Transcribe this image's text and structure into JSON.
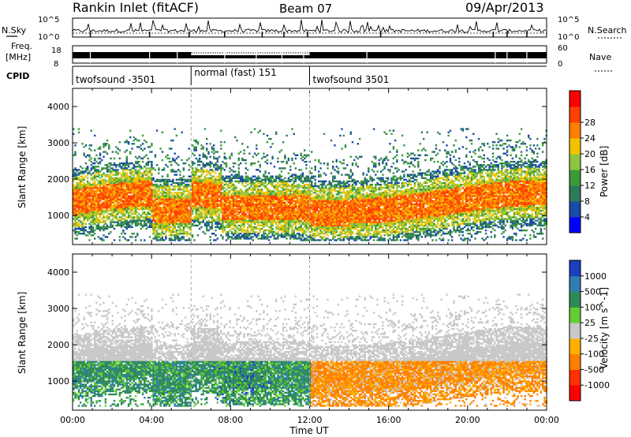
{
  "header": {
    "title": "Rankin Inlet (fitACF)",
    "beam": "Beam 07",
    "date": "09/Apr/2013"
  },
  "noise_panel": {
    "left_label": "N.Sky",
    "right_label": "N.Search",
    "left_ticks": [
      "10^5",
      "10^0"
    ],
    "right_ticks": [
      "10^5",
      "10^0"
    ]
  },
  "freq_panel": {
    "left_label_1": "Freq.",
    "left_label_2": "[MHz]",
    "left_ticks": [
      "18",
      "8"
    ],
    "right_label": "Nave",
    "right_ticks": [
      "60",
      "0"
    ]
  },
  "cpid": {
    "label": "CPID",
    "segments": [
      {
        "name": "twofsound -3501",
        "start_h": 0.0,
        "end_h": 6.0
      },
      {
        "name": "normal (fast) 151",
        "start_h": 6.0,
        "end_h": 12.0
      },
      {
        "name": "twofsound 3501",
        "start_h": 12.0,
        "end_h": 24.0
      }
    ]
  },
  "chart_data": [
    {
      "type": "heatmap",
      "title": "Power",
      "xlabel": "Time UT",
      "ylabel": "Slant Range [km]",
      "xlim_hours": [
        0,
        24
      ],
      "ylim_km": [
        200,
        4500
      ],
      "x_tick_labels": [
        "00:00",
        "04:00",
        "08:00",
        "12:00",
        "16:00",
        "20:00",
        "00:00"
      ],
      "y_tick_labels": [
        "1000",
        "2000",
        "3000",
        "4000"
      ],
      "y_ticks_km": [
        1000,
        2000,
        3000,
        4000
      ],
      "colorbar": {
        "label": "Power [dB]",
        "tick_labels": [
          "4",
          "8",
          "12",
          "16",
          "20",
          "24",
          "28"
        ],
        "colors": [
          "#0000ff",
          "#1a4aa8",
          "#2e7a5a",
          "#3a9a3a",
          "#8cc63f",
          "#f2c200",
          "#ff8000",
          "#ff4000",
          "#ff0000"
        ]
      },
      "bands": [
        {
          "range_km": [
            800,
            1900
          ],
          "dB": 24,
          "note": "main scatter band"
        },
        {
          "range_km": [
            1900,
            2500
          ],
          "dB": 18
        },
        {
          "range_km": [
            2500,
            3200
          ],
          "dB": 10
        }
      ]
    },
    {
      "type": "heatmap",
      "title": "Velocity",
      "xlabel": "Time UT",
      "ylabel": "Slant Range [km]",
      "xlim_hours": [
        0,
        24
      ],
      "ylim_km": [
        200,
        4500
      ],
      "x_tick_labels": [
        "00:00",
        "04:00",
        "08:00",
        "12:00",
        "16:00",
        "20:00",
        "00:00"
      ],
      "y_tick_labels": [
        "1000",
        "2000",
        "3000",
        "4000"
      ],
      "y_ticks_km": [
        1000,
        2000,
        3000,
        4000
      ],
      "colorbar": {
        "label": "Velocity [m s^-1]",
        "tick_labels": [
          "1000",
          "500",
          "100",
          "25",
          "-25",
          "-100",
          "-500",
          "-1000"
        ],
        "colors": [
          "#1a3fbf",
          "#2e7fb0",
          "#2e8b57",
          "#66cc33",
          "#c8c8c8",
          "#ffb000",
          "#ff8000",
          "#ff3000",
          "#ff0000"
        ]
      }
    }
  ]
}
